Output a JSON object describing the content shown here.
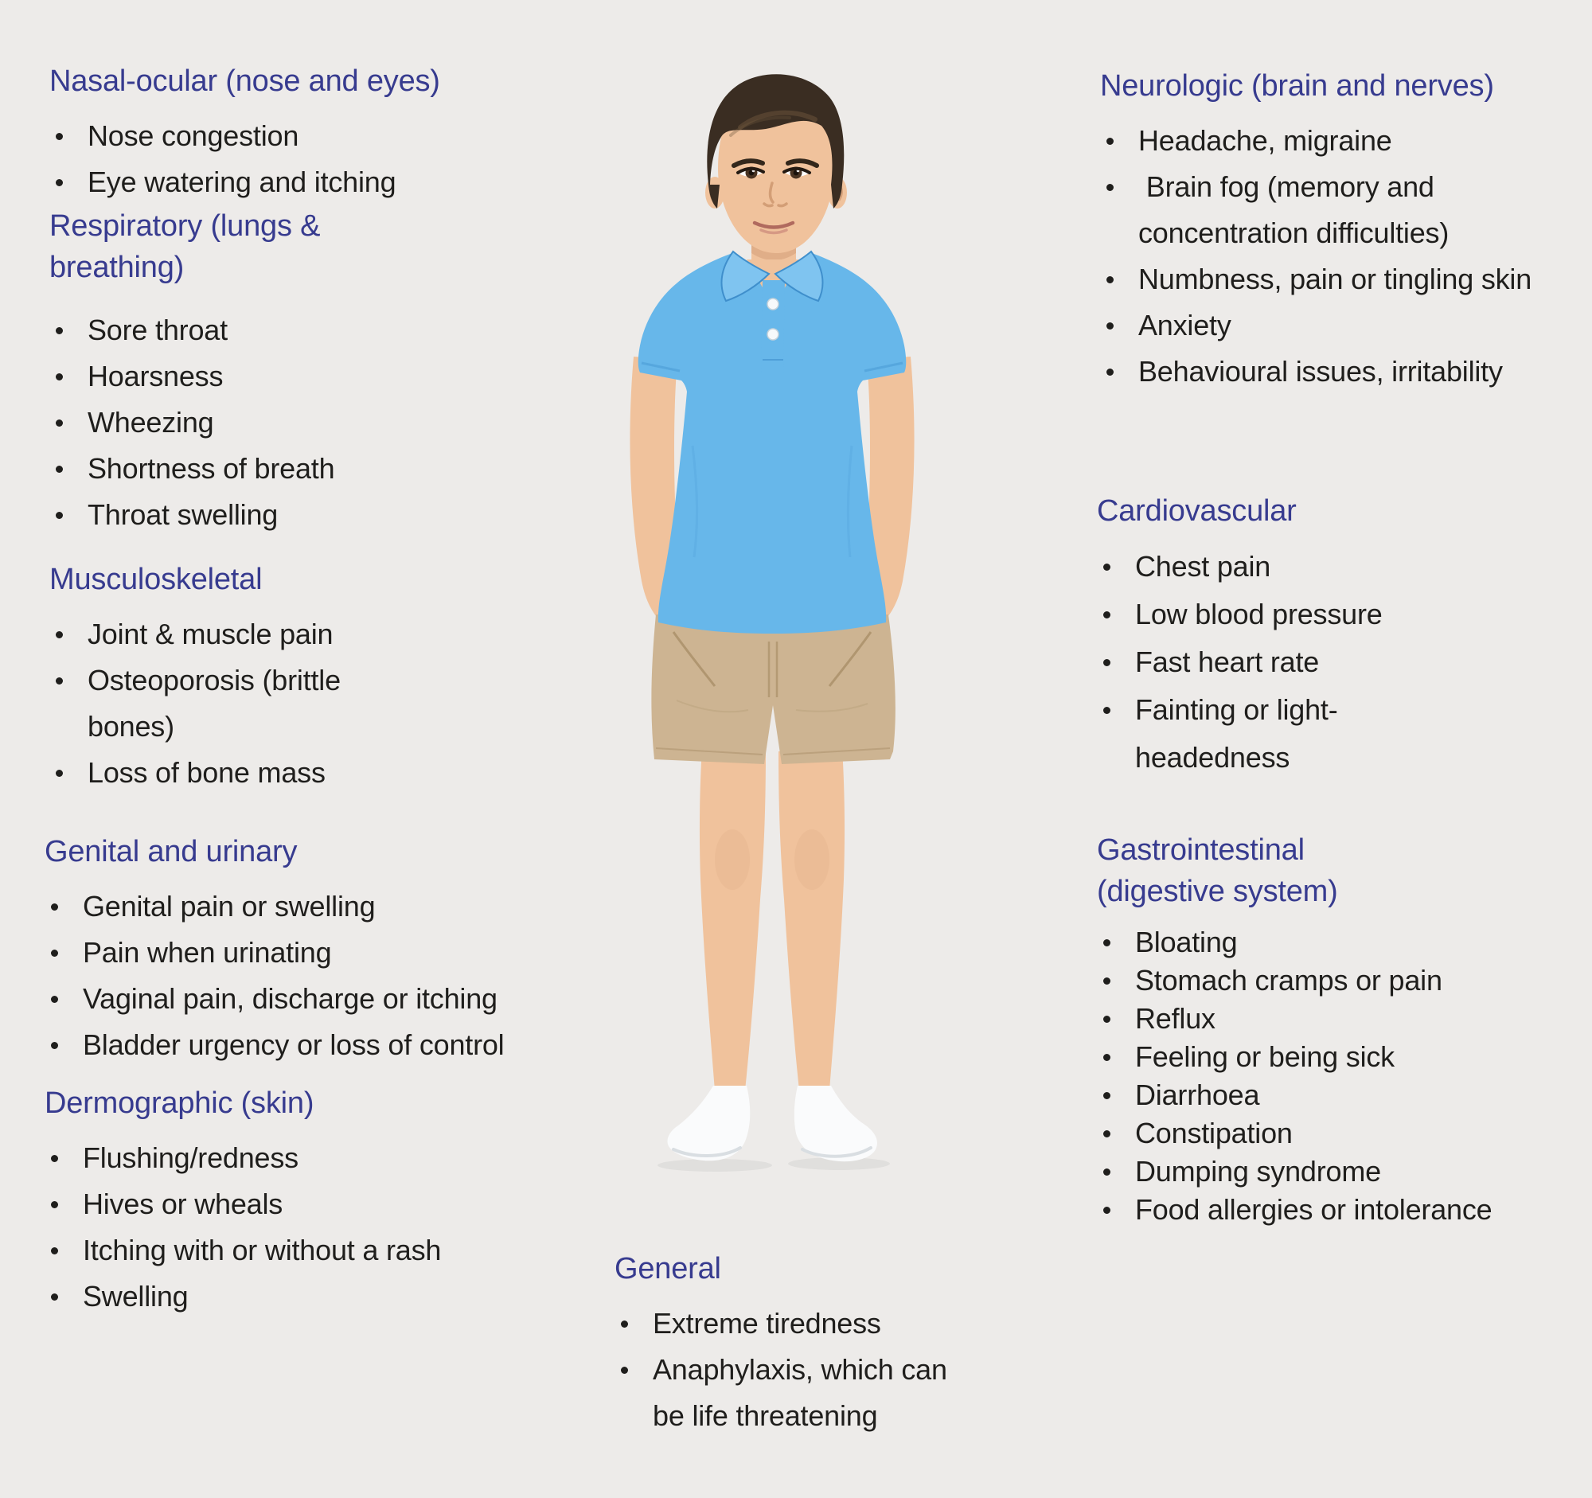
{
  "theme": {
    "background": "#edebe9",
    "heading": "#373b8f",
    "text": "#1f1e1c",
    "skin": "#f0c29c",
    "skin-shade": "#d39f78",
    "hair": "#3a2d22",
    "hair-light": "#6d563c",
    "shirt": "#67b7ea",
    "shirt-light": "#7fc4f0",
    "shirt-dark": "#3f8fcc",
    "shorts": "#cdb492",
    "shorts-dark": "#a98e68",
    "sock": "#fafbfc",
    "sock-shade": "#d9dee2",
    "eye": "#4a3423",
    "brow": "#33271b",
    "lip": "#b06a5e",
    "lip-light": "#d08e7e",
    "nose": "#cf9a72"
  },
  "figure": {
    "description": "Boy with dark side-swept hair wearing a light blue polo shirt, beige shorts and white ankle socks, standing with hands in pockets"
  },
  "sections": [
    {
      "id": "nasal-ocular",
      "title": "Nasal-ocular (nose and eyes)",
      "items": [
        "Nose congestion",
        "Eye watering and itching"
      ]
    },
    {
      "id": "respiratory",
      "title": "Respiratory (lungs &\nbreathing)",
      "items": [
        "Sore throat",
        "Hoarsness",
        "Wheezing",
        "Shortness of breath",
        "Throat swelling"
      ]
    },
    {
      "id": "musculoskeletal",
      "title": "Musculoskeletal",
      "items": [
        "Joint & muscle pain",
        "Osteoporosis (brittle bones)",
        "Loss of bone mass"
      ]
    },
    {
      "id": "genital-urinary",
      "title": "Genital and urinary",
      "items": [
        "Genital pain or swelling",
        "Pain when urinating",
        "Vaginal pain, discharge or itching",
        "Bladder urgency or loss of control"
      ]
    },
    {
      "id": "dermographic",
      "title": "Dermographic (skin)",
      "items": [
        "Flushing/redness",
        "Hives or wheals",
        "Itching with or without a rash",
        "Swelling"
      ]
    },
    {
      "id": "neurologic",
      "title": "Neurologic (brain and nerves)",
      "items": [
        "Headache, migraine",
        " Brain fog (memory and concentration difficulties)",
        "Numbness, pain or tingling skin",
        "Anxiety",
        "Behavioural issues, irritability"
      ]
    },
    {
      "id": "cardiovascular",
      "title": "Cardiovascular",
      "items": [
        "Chest pain",
        "Low blood pressure",
        "Fast heart rate",
        "Fainting or light-headedness"
      ]
    },
    {
      "id": "gastrointestinal",
      "title": "Gastrointestinal\n(digestive system)",
      "items": [
        "Bloating",
        "Stomach cramps or pain",
        "Reflux",
        "Feeling or being sick",
        "Diarrhoea",
        "Constipation",
        "Dumping syndrome",
        "Food allergies or intolerance"
      ]
    },
    {
      "id": "general",
      "title": "General",
      "items": [
        "Extreme tiredness",
        "Anaphylaxis, which can be life threatening"
      ]
    }
  ]
}
